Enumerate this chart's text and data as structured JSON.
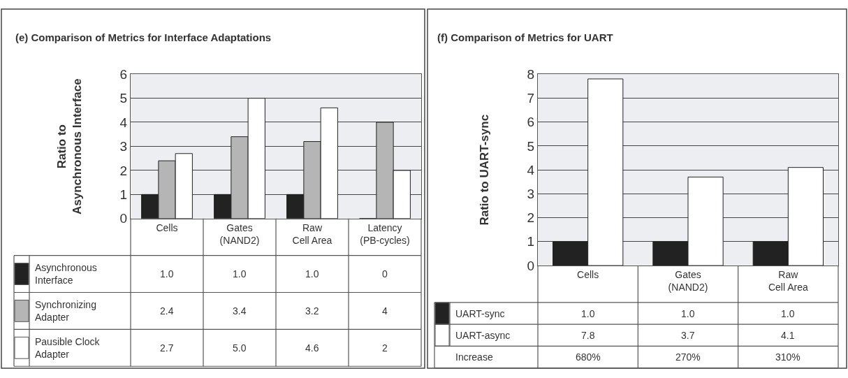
{
  "chart_data": [
    {
      "type": "bar",
      "title": "(e) Comparison of Metrics for Interface Adaptations",
      "ylabel": "Ratio to\nAsynchronous Interface",
      "categories": [
        "Cells",
        "Gates (NAND2)",
        "Raw Cell Area",
        "Latency (PB-cycles)"
      ],
      "ylim": [
        0,
        6
      ],
      "yticks": [
        0,
        1,
        2,
        3,
        4,
        5,
        6
      ],
      "grid": "y",
      "legend": "bottom left",
      "data_labels": true,
      "series": [
        {
          "name": "Asynchronous\nInterface",
          "color": "#222222",
          "values": [
            1.0,
            1.0,
            1.0,
            0
          ],
          "value_labels": [
            "1.0",
            "1.0",
            "1.0",
            "0"
          ]
        },
        {
          "name": "Synchronizing\nAdapter",
          "color": "#b5b5b5",
          "values": [
            2.4,
            3.4,
            3.2,
            4
          ],
          "value_labels": [
            "2.4",
            "3.4",
            "3.2",
            "4"
          ]
        },
        {
          "name": "Pausible Clock\nAdapter",
          "color": "#ffffff",
          "values": [
            2.7,
            5.0,
            4.6,
            2
          ],
          "value_labels": [
            "2.7",
            "5.0",
            "4.6",
            "2"
          ]
        }
      ]
    },
    {
      "type": "bar",
      "title": "(f) Comparison of Metrics for UART",
      "ylabel": "Ratio to UART-sync",
      "categories": [
        "Cells",
        "Gates (NAND2)",
        "Raw Cell Area"
      ],
      "ylim": [
        0,
        8
      ],
      "yticks": [
        0,
        1,
        2,
        3,
        4,
        5,
        6,
        7,
        8
      ],
      "grid": "y",
      "legend": "bottom left",
      "data_labels": true,
      "series": [
        {
          "name": "UART-sync",
          "color": "#222222",
          "values": [
            1.0,
            1.0,
            1.0
          ],
          "value_labels": [
            "1.0",
            "1.0",
            "1.0"
          ]
        },
        {
          "name": "UART-async",
          "color": "#ffffff",
          "values": [
            7.8,
            3.7,
            4.1
          ],
          "value_labels": [
            "7.8",
            "3.7",
            "4.1"
          ]
        }
      ],
      "annotations": [
        "Increase",
        "680%",
        "270%",
        "310%"
      ]
    }
  ]
}
